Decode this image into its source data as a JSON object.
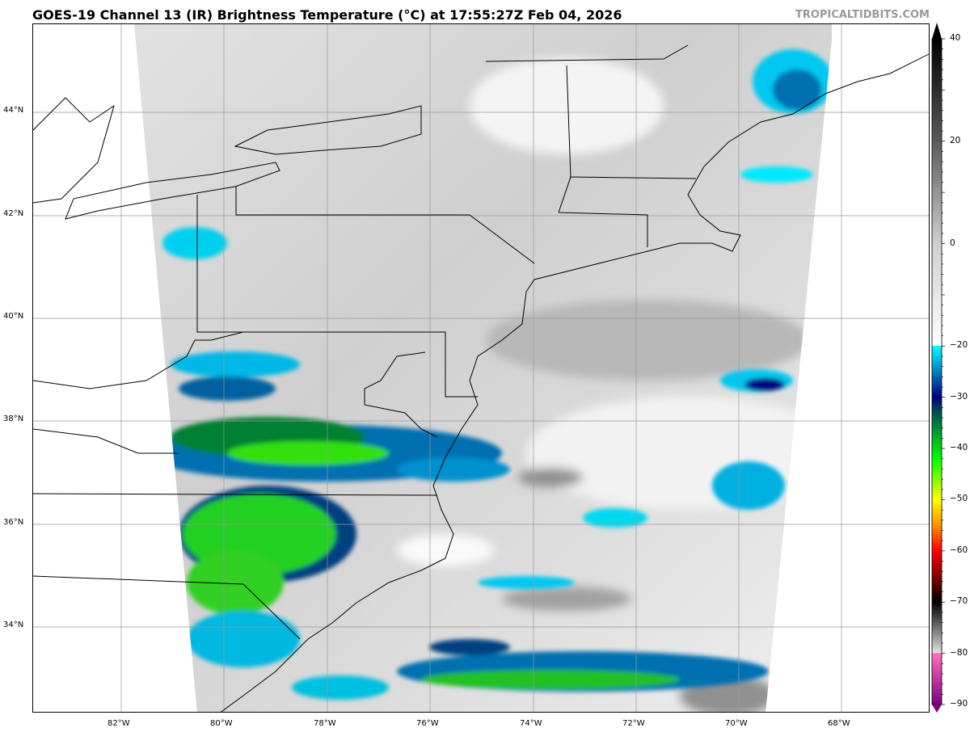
{
  "title": "GOES-19 Channel 13 (IR) Brightness Temperature (°C) at 17:55:27Z Feb 04, 2026",
  "watermark": "TROPICALTIDBITS.COM",
  "map": {
    "longitude_labels": [
      "82°W",
      "80°W",
      "78°W",
      "76°W",
      "74°W",
      "72°W",
      "70°W",
      "68°W"
    ],
    "latitude_labels": [
      "44°N",
      "42°N",
      "40°N",
      "38°N",
      "36°N",
      "34°N"
    ],
    "grid": true
  },
  "colorbar": {
    "range": [
      -90,
      40
    ],
    "ticks": [
      "40",
      "20",
      "0",
      "−20",
      "−30",
      "−40",
      "−50",
      "−60",
      "−70",
      "−80",
      "−90"
    ],
    "tick_values": [
      40,
      20,
      0,
      -20,
      -30,
      -40,
      -50,
      -60,
      -70,
      -80,
      -90
    ],
    "stops": [
      {
        "value": 40,
        "color": "#000000"
      },
      {
        "value": 20,
        "color": "#5a5a5a"
      },
      {
        "value": 0,
        "color": "#cfcfcf"
      },
      {
        "value": -19.9,
        "color": "#ffffff"
      },
      {
        "value": -20,
        "color": "#00ffff"
      },
      {
        "value": -25,
        "color": "#0080c0"
      },
      {
        "value": -30,
        "color": "#000080"
      },
      {
        "value": -33,
        "color": "#005050"
      },
      {
        "value": -37,
        "color": "#00a030"
      },
      {
        "value": -42,
        "color": "#00ff00"
      },
      {
        "value": -50,
        "color": "#ffff00"
      },
      {
        "value": -55,
        "color": "#ff9000"
      },
      {
        "value": -60,
        "color": "#ff0000"
      },
      {
        "value": -67,
        "color": "#500000"
      },
      {
        "value": -70,
        "color": "#000000"
      },
      {
        "value": -79.9,
        "color": "#e0e0e0"
      },
      {
        "value": -80,
        "color": "#ff70c0"
      },
      {
        "value": -90,
        "color": "#800080"
      }
    ]
  }
}
